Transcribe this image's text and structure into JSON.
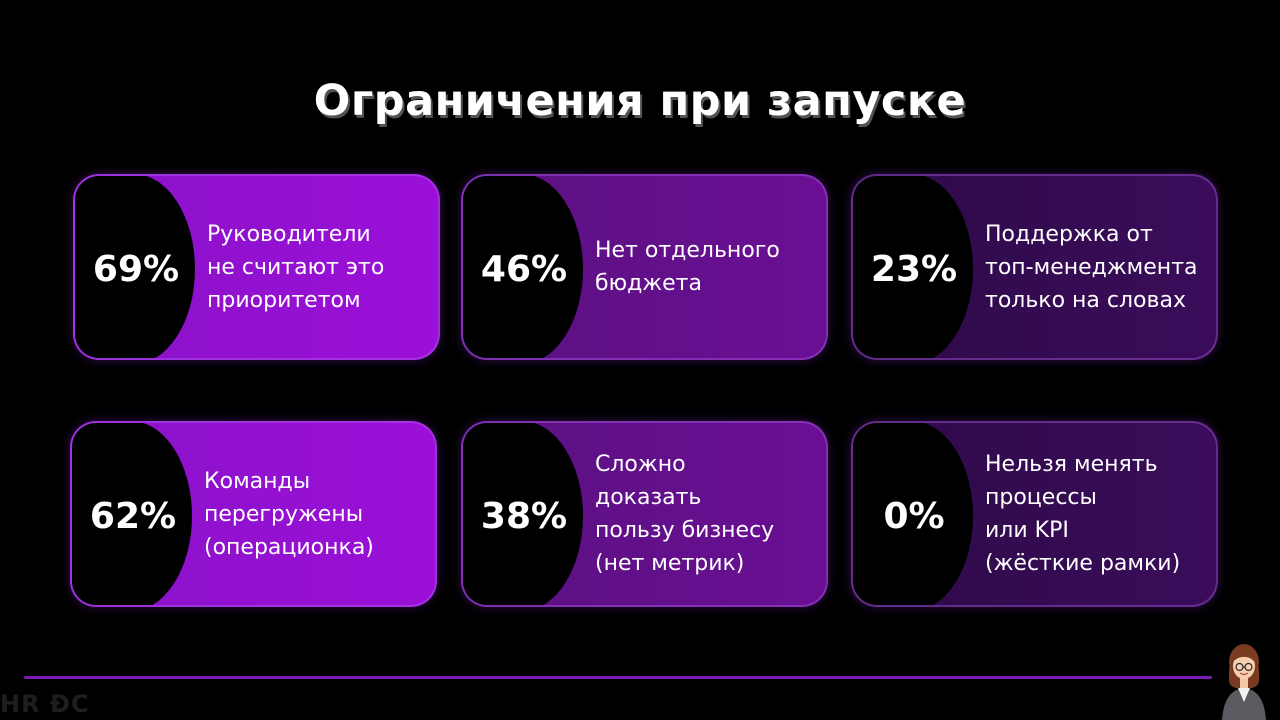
{
  "slide": {
    "title": "Ограничения при запуске",
    "logo_text": "HR ĐC",
    "accent_color": "#7a1bb8"
  },
  "cards": [
    {
      "percent": "69%",
      "text": "Руководители\nне считают это\nприоритетом"
    },
    {
      "percent": "46%",
      "text": "Нет отдельного\nбюджета"
    },
    {
      "percent": "23%",
      "text": "Поддержка от\nтоп-менеджмента\nтолько на словах"
    },
    {
      "percent": "62%",
      "text": "Команды\nперегружены\n(операционка)"
    },
    {
      "percent": "38%",
      "text": "Сложно\nдоказать\nпользу бизнесу\n(нет метрик)"
    },
    {
      "percent": "0%",
      "text": "Нельзя менять\nпроцессы\nили KPI\n(жёсткие рамки)"
    }
  ],
  "icons": {
    "presenter": "presenter-avatar-icon"
  }
}
